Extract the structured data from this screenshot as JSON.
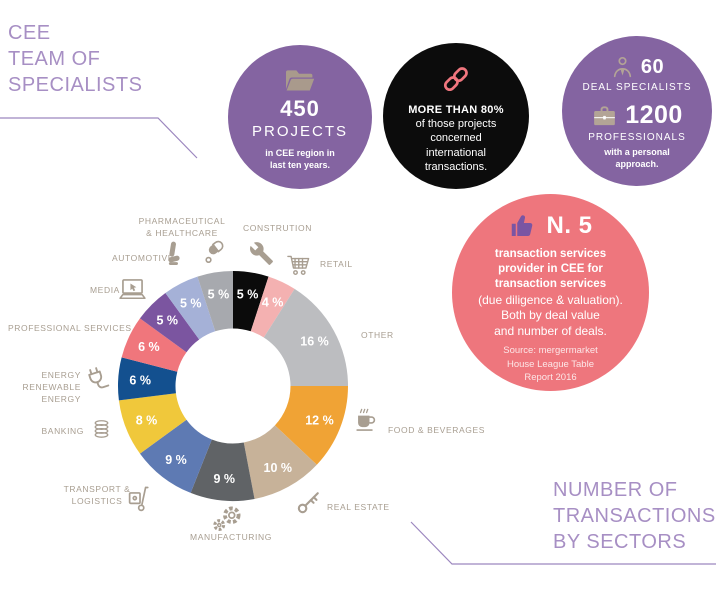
{
  "header": {
    "title": "CEE\nTEAM OF\nSPECIALISTS"
  },
  "footer": {
    "title": "NUMBER OF\nTRANSACTIONS\nBY SECTORS"
  },
  "stats": {
    "projects": {
      "icon": "folder-icon",
      "number": "450",
      "label": "PROJECTS",
      "sub": "in CEE region in\nlast ten years."
    },
    "international": {
      "icon": "chain-link-icon",
      "headline": "MORE THAN 80%",
      "body": "of those projects\nconcerned\ninternational\ntransactions."
    },
    "team": {
      "deal_icon": "person-icon",
      "deal_number": "60",
      "deal_label": "DEAL SPECIALISTS",
      "prof_icon": "briefcase-icon",
      "prof_number": "1200",
      "prof_label": "PROFESSIONALS",
      "prof_sub": "with a personal\napproach."
    },
    "ranking": {
      "icon": "thumbs-up-icon",
      "number": "N. 5",
      "bold_text": "transaction services\nprovider in CEE for\ntransaction services",
      "normal_text": "(due diligence & valuation).\nBoth by deal value\nand number of deals.",
      "source_text": "Source: mergermarket\nHouse League Table\nReport 2016"
    }
  },
  "chart_data": {
    "type": "pie",
    "donut": true,
    "title": "NUMBER OF TRANSACTIONS BY SECTORS",
    "unit": "%",
    "start_angle_deg": 0,
    "clockwise": true,
    "value_label_format": "{value} %",
    "sectors": [
      {
        "label": "CONSTRUTION",
        "value": 5,
        "color": "#0b0b0b",
        "icon": "wrench-icon"
      },
      {
        "label": "RETAIL",
        "value": 4,
        "color": "#f4b1b1",
        "icon": "shopping-cart-icon"
      },
      {
        "label": "OTHER",
        "value": 16,
        "color": "#bcbdc0",
        "icon": null
      },
      {
        "label": "FOOD & BEVERAGES",
        "value": 12,
        "color": "#f0a335",
        "icon": "coffee-cup-icon"
      },
      {
        "label": "REAL ESTATE",
        "value": 10,
        "color": "#c7b299",
        "icon": "key-icon"
      },
      {
        "label": "MANUFACTURING",
        "value": 9,
        "color": "#606366",
        "icon": "gears-icon"
      },
      {
        "label": "TRANSPORT &\nLOGISTICS",
        "value": 9,
        "color": "#5e7ab3",
        "icon": "hand-truck-icon"
      },
      {
        "label": "BANKING",
        "value": 8,
        "color": "#f0c83b",
        "icon": "coins-icon"
      },
      {
        "label": "ENERGY\nRENEWABLE ENERGY",
        "value": 6,
        "color": "#13508f",
        "icon": "plug-icon"
      },
      {
        "label": "PROFESSIONAL SERVICES",
        "value": 6,
        "color": "#f0767c",
        "icon": null
      },
      {
        "label": "MEDIA",
        "value": 5,
        "color": "#7b55a0",
        "icon": "laptop-icon"
      },
      {
        "label": "AUTOMOTIVE",
        "value": 5,
        "color": "#a5b1d7",
        "icon": "car-seat-icon"
      },
      {
        "label": "PHARMACEUTICAL\n& HEALTHCARE",
        "value": 5,
        "color": "#a7a9ae",
        "icon": "pill-icon"
      }
    ]
  },
  "palette": {
    "circle_purple": "#8464a1",
    "circle_black": "#0c0c0c",
    "circle_pink": "#ee767d",
    "title_purple": "#a78fc4",
    "icon_tan": "#b3a496",
    "label_tan": "#a89e91",
    "accent_pink": "#f0767e",
    "accent_purple": "#7a55a3"
  }
}
